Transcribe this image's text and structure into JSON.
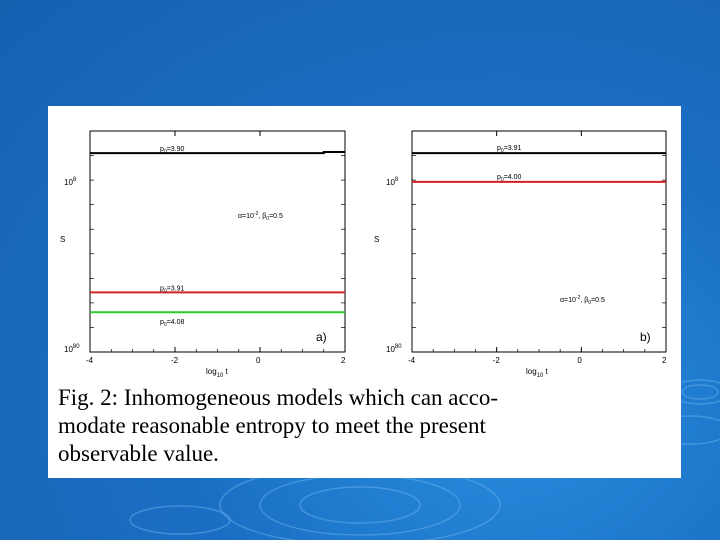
{
  "colors": {
    "black": "#000000",
    "red": "#d42020",
    "green": "#2ecc2e",
    "slide_blue": "#1a6fc4"
  },
  "caption": {
    "line1": "Fig.  2:  Inhomogeneous  models  which  can  acco-",
    "line2": "modate  reasonable  entropy  to  meet  the  present",
    "line3": "observable value."
  },
  "chart_data": [
    {
      "type": "line",
      "panel_label": "a)",
      "xlabel": "log",
      "xlabel_sub": "10",
      "xlabel_tail": "t",
      "ylabel": "S",
      "xlim": [
        -4,
        2
      ],
      "x_ticks": [
        "-4",
        "-2",
        "0",
        "2"
      ],
      "y_ticks": [
        {
          "value": "10",
          "exp": "8"
        },
        {
          "value": "10",
          "exp": "80"
        }
      ],
      "annotation": {
        "text": "α=10",
        "exp": "-2",
        "tail": ", β",
        "sub": "0",
        "tail2": "=0.5"
      },
      "series": [
        {
          "name": "p=3.90",
          "color": "#000000",
          "x": [
            -4,
            1.5,
            1.5,
            2
          ],
          "y": [
            0.9,
            0.9,
            0.905,
            0.905
          ]
        },
        {
          "name": "p=3.91",
          "color": "#d42020",
          "x": [
            -4,
            2
          ],
          "y": [
            0.27,
            0.27
          ]
        },
        {
          "name": "p=4.08",
          "color": "#2ecc2e",
          "x": [
            -4,
            2
          ],
          "y": [
            0.18,
            0.18
          ]
        }
      ],
      "labels": [
        {
          "base": "p",
          "sub": "0",
          "val": "=3.90"
        },
        {
          "base": "p",
          "sub": "0",
          "val": "=3.91"
        },
        {
          "base": "p",
          "sub": "0",
          "val": "=4.08"
        }
      ]
    },
    {
      "type": "line",
      "panel_label": "b)",
      "xlabel": "log",
      "xlabel_sub": "10",
      "xlabel_tail": "t",
      "ylabel": "S",
      "xlim": [
        -4,
        2
      ],
      "x_ticks": [
        "-4",
        "-2",
        "0",
        "2"
      ],
      "y_ticks": [
        {
          "value": "10",
          "exp": "8"
        },
        {
          "value": "10",
          "exp": "80"
        }
      ],
      "annotation": {
        "text": "α=10",
        "exp": "-2",
        "tail": ", β",
        "sub": "0",
        "tail2": "=0.5"
      },
      "series": [
        {
          "name": "p=3.91",
          "color": "#000000",
          "x": [
            -4,
            2
          ],
          "y": [
            0.9,
            0.9
          ]
        },
        {
          "name": "p=4.00",
          "color": "#d42020",
          "x": [
            -4,
            2
          ],
          "y": [
            0.77,
            0.77
          ]
        }
      ],
      "labels": [
        {
          "base": "p",
          "sub": "0",
          "val": "=3.91"
        },
        {
          "base": "p",
          "sub": "0",
          "val": "=4.00"
        }
      ]
    }
  ]
}
